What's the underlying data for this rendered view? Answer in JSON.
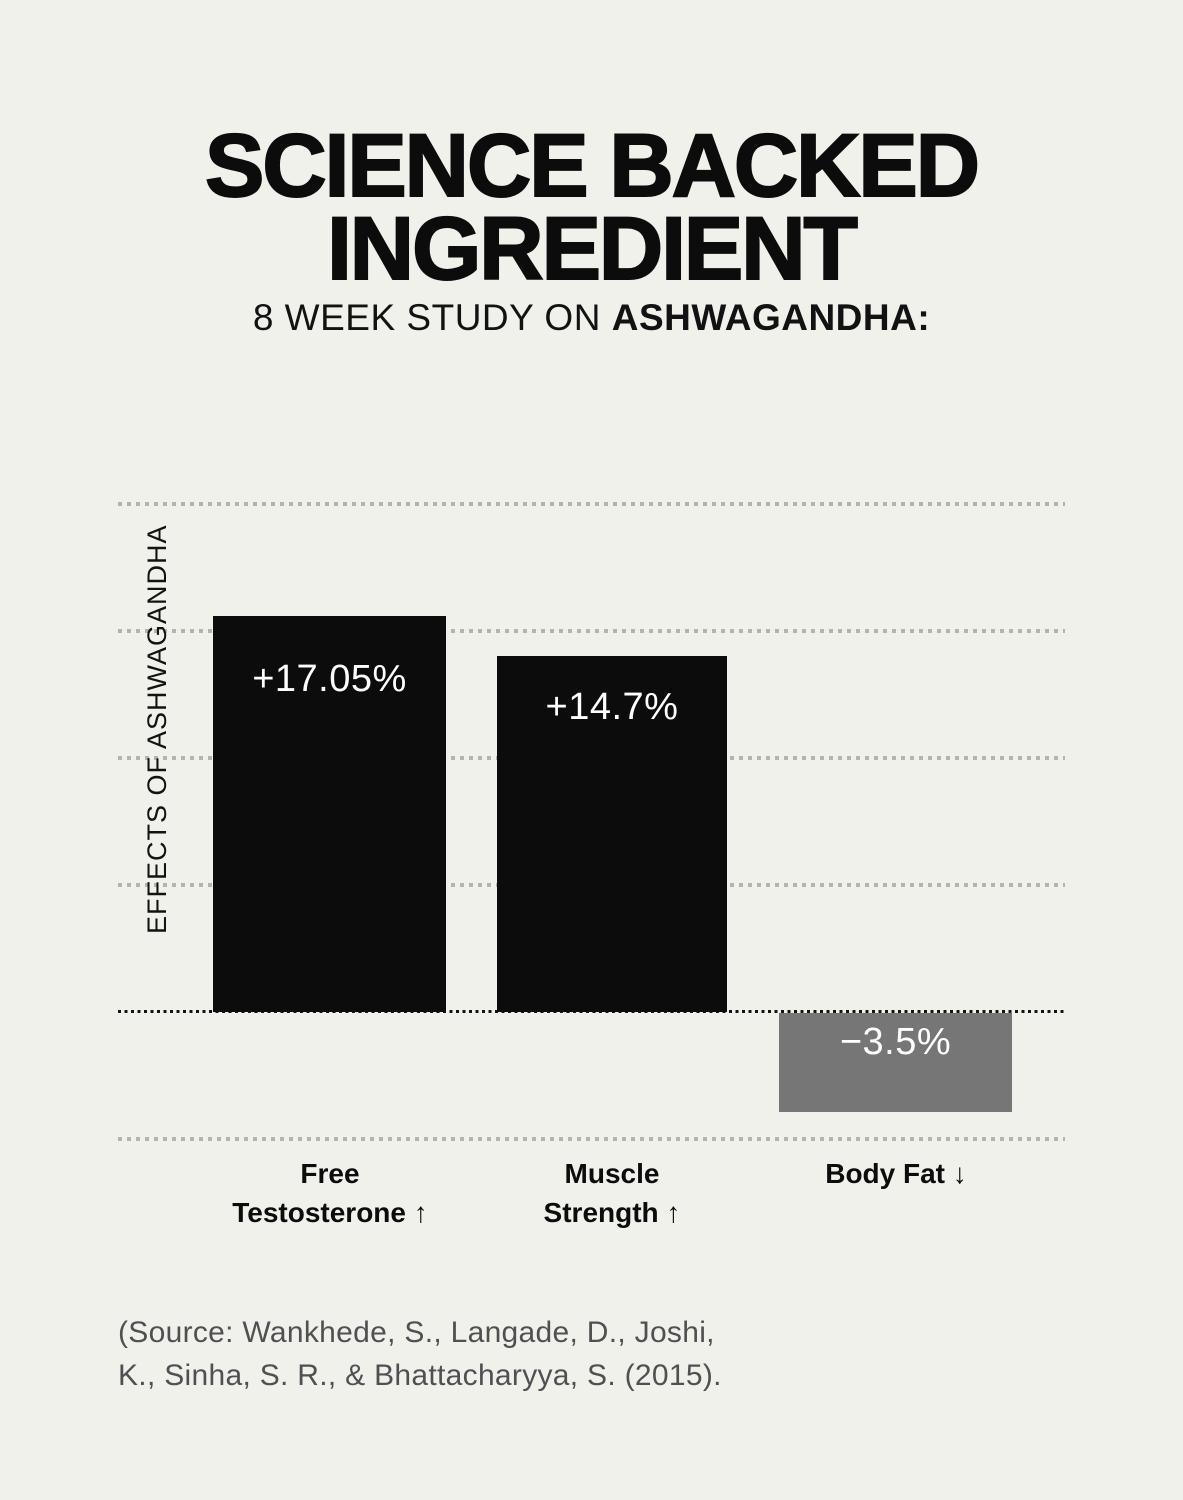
{
  "page": {
    "background_color": "#f1f1ec",
    "text_color": "#0c0c0c",
    "title_line1": "SCIENCE BACKED",
    "title_line2": "INGREDIENT",
    "subtitle_prefix": "8 WEEK STUDY ON ",
    "subtitle_emphasis": "ASHWAGANDHA:"
  },
  "chart": {
    "y_axis_label": "EFFECTS OF ASHWAGANDHA",
    "gridline_color": "#b4b4af",
    "baseline_color": "#131313",
    "bars": [
      {
        "label_line1": "Free",
        "label_line2": "Testosterone ↑",
        "value_label": "+17.05%",
        "value": 17.05,
        "color": "#0c0c0c"
      },
      {
        "label_line1": "Muscle",
        "label_line2": "Strength ↑",
        "value_label": "+14.7%",
        "value": 14.7,
        "color": "#0c0c0c"
      },
      {
        "label_line1": "Body Fat ↓",
        "label_line2": "",
        "value_label": "−3.5%",
        "value": -3.5,
        "color": "#767676"
      }
    ]
  },
  "chart_data": {
    "type": "bar",
    "categories": [
      "Free Testosterone ↑",
      "Muscle Strength ↑",
      "Body Fat ↓"
    ],
    "values": [
      17.05,
      14.7,
      -3.5
    ],
    "data_labels": [
      "+17.05%",
      "+14.7%",
      "−3.5%"
    ],
    "title": "SCIENCE BACKED INGREDIENT",
    "subtitle": "8 WEEK STUDY ON ASHWAGANDHA:",
    "xlabel": "",
    "ylabel": "EFFECTS OF ASHWAGANDHA",
    "ylim": [
      -5.5,
      22
    ],
    "baseline": 0,
    "grid": "horizontal dotted, 6 lines evenly spaced; zero line is black dotted, others gray dotted",
    "legend": false,
    "bar_colors": [
      "#0c0c0c",
      "#0c0c0c",
      "#767676"
    ]
  },
  "source": {
    "line1": "(Source: Wankhede, S., Langade, D., Joshi,",
    "line2": "K., Sinha, S. R., & Bhattacharyya, S. (2015)."
  }
}
